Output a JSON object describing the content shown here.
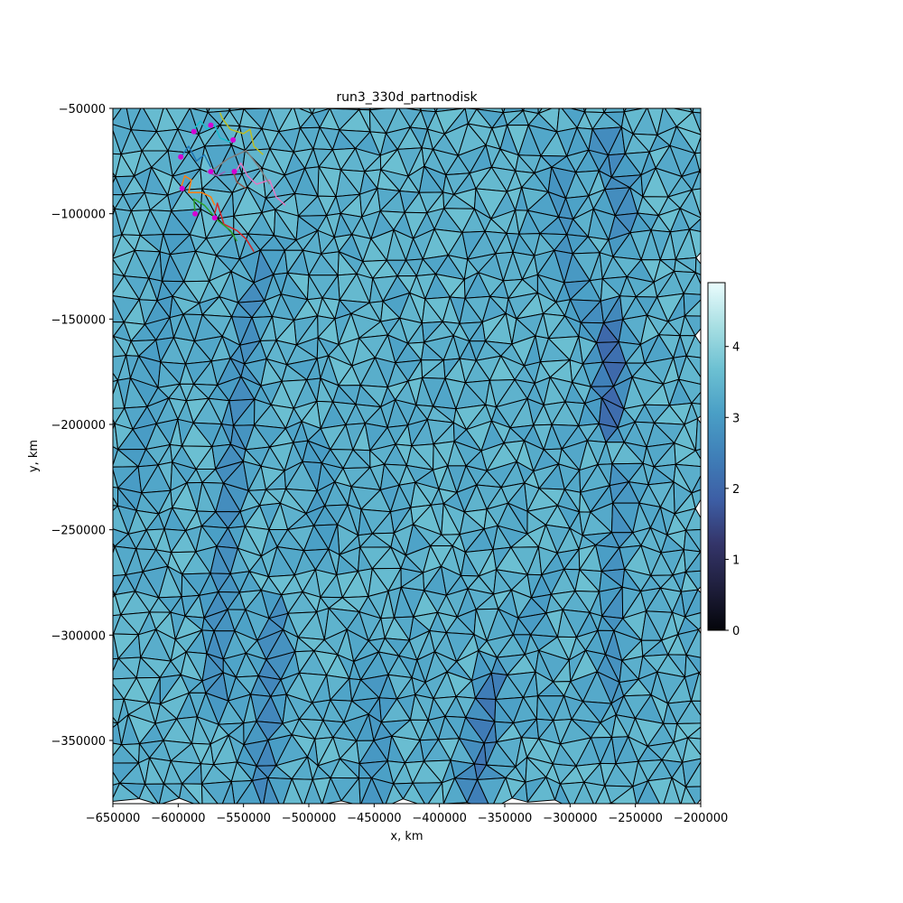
{
  "chart_data": {
    "type": "heatmap",
    "title": "run3_330d_partnodisk",
    "xlabel": "x, km",
    "ylabel": "y, km",
    "xlim": [
      -650000,
      -200000
    ],
    "ylim": [
      -380000,
      -50000
    ],
    "x_ticks": [
      -650000,
      -600000,
      -550000,
      -500000,
      -450000,
      -400000,
      -350000,
      -300000,
      -250000,
      -200000
    ],
    "y_ticks": [
      -50000,
      -100000,
      -150000,
      -200000,
      -250000,
      -300000,
      -350000
    ],
    "x_tick_labels": [
      "−650000",
      "−600000",
      "−550000",
      "−500000",
      "−450000",
      "−400000",
      "−350000",
      "−300000",
      "−250000",
      "−200000"
    ],
    "y_tick_labels": [
      "−50000",
      "−100000",
      "−150000",
      "−200000",
      "−250000",
      "−300000",
      "−350000"
    ],
    "grid": false,
    "mesh": "triangular mesh with black edges",
    "colormap": {
      "name": "ice",
      "range": [
        0,
        4.9
      ],
      "ticks": [
        0,
        1,
        2,
        3,
        4
      ],
      "tick_labels": [
        "0",
        "1",
        "2",
        "3",
        "4"
      ],
      "stops": [
        "#04050a",
        "#1f1f3d",
        "#34356a",
        "#3d5ea5",
        "#3f7fb8",
        "#4a9fc6",
        "#6cc0d2",
        "#a8dfe3",
        "#eafcfd"
      ]
    },
    "background_value": 3.4,
    "low_value_bands": [
      {
        "points": [
          [
            -535000,
            -118000
          ],
          [
            -548000,
            -160000
          ],
          [
            -556000,
            -200000
          ],
          [
            -562000,
            -240000
          ],
          [
            -568000,
            -290000
          ],
          [
            -572000,
            -330000
          ]
        ],
        "value": 2.7
      },
      {
        "points": [
          [
            -525000,
            -290000
          ],
          [
            -530000,
            -330000
          ],
          [
            -536000,
            -380000
          ]
        ],
        "value": 2.6
      },
      {
        "points": [
          [
            -375000,
            -380000
          ],
          [
            -365000,
            -345000
          ],
          [
            -358000,
            -320000
          ]
        ],
        "value": 2.3
      },
      {
        "points": [
          [
            -272000,
            -150000
          ],
          [
            -268000,
            -175000
          ],
          [
            -270000,
            -200000
          ]
        ],
        "value": 2.0
      },
      {
        "points": [
          [
            -275000,
            -65000
          ],
          [
            -262000,
            -85000
          ],
          [
            -258000,
            -110000
          ]
        ],
        "value": 2.6
      },
      {
        "points": [
          [
            -310000,
            -80000
          ],
          [
            -300000,
            -130000
          ],
          [
            -290000,
            -150000
          ]
        ],
        "value": 2.8
      },
      {
        "points": [
          [
            -262000,
            -225000
          ],
          [
            -265000,
            -280000
          ],
          [
            -268000,
            -330000
          ]
        ],
        "value": 2.8
      },
      {
        "points": [
          [
            -445000,
            -320000
          ],
          [
            -450000,
            -380000
          ]
        ],
        "value": 2.9
      },
      {
        "points": [
          [
            -600000,
            -110000
          ],
          [
            -612000,
            -150000
          ],
          [
            -625000,
            -200000
          ],
          [
            -640000,
            -240000
          ]
        ],
        "value": 3.0
      },
      {
        "points": [
          [
            -495000,
            -210000
          ],
          [
            -490000,
            -260000
          ]
        ],
        "value": 3.0
      },
      {
        "points": [
          [
            -320000,
            -280000
          ],
          [
            -335000,
            -300000
          ]
        ],
        "value": 3.0
      }
    ],
    "trajectories": [
      {
        "color": "#d62728",
        "points": [
          [
            -572000,
            -100000
          ],
          [
            -570000,
            -95000
          ],
          [
            -565000,
            -105000
          ],
          [
            -555000,
            -108000
          ],
          [
            -548000,
            -112000
          ],
          [
            -542000,
            -118000
          ]
        ]
      },
      {
        "color": "#2ca02c",
        "points": [
          [
            -587000,
            -100000
          ],
          [
            -588000,
            -93000
          ],
          [
            -580000,
            -96000
          ],
          [
            -570000,
            -103000
          ],
          [
            -560000,
            -108000
          ],
          [
            -555000,
            -113000
          ]
        ]
      },
      {
        "color": "#ff7f0e",
        "points": [
          [
            -598000,
            -88000
          ],
          [
            -595000,
            -82000
          ],
          [
            -590000,
            -84000
          ],
          [
            -592000,
            -90000
          ],
          [
            -582000,
            -90000
          ],
          [
            -575000,
            -92000
          ],
          [
            -572000,
            -96000
          ]
        ]
      },
      {
        "color": "#e377c2",
        "points": [
          [
            -556000,
            -80000
          ],
          [
            -552000,
            -76000
          ],
          [
            -547000,
            -82000
          ],
          [
            -540000,
            -86000
          ],
          [
            -530000,
            -84000
          ],
          [
            -525000,
            -92000
          ],
          [
            -518000,
            -96000
          ]
        ]
      },
      {
        "color": "#7f7f7f",
        "points": [
          [
            -575000,
            -80000
          ],
          [
            -562000,
            -74000
          ],
          [
            -548000,
            -70000
          ],
          [
            -538000,
            -78000
          ],
          [
            -530000,
            -86000
          ]
        ]
      },
      {
        "color": "#1f77b4",
        "points": [
          [
            -598000,
            -73000
          ],
          [
            -592000,
            -68000
          ],
          [
            -586000,
            -75000
          ],
          [
            -580000,
            -72000
          ],
          [
            -575000,
            -78000
          ]
        ]
      },
      {
        "color": "#bcbd22",
        "points": [
          [
            -568000,
            -52000
          ],
          [
            -566000,
            -55000
          ],
          [
            -560000,
            -60000
          ],
          [
            -550000,
            -62000
          ],
          [
            -545000,
            -60000
          ],
          [
            -542000,
            -68000
          ],
          [
            -535000,
            -72000
          ]
        ]
      },
      {
        "color": "#17becf",
        "points": [
          [
            -588000,
            -60000
          ],
          [
            -583000,
            -56000
          ],
          [
            -578000,
            -60000
          ],
          [
            -572000,
            -58000
          ],
          [
            -568000,
            -64000
          ],
          [
            -560000,
            -66000
          ]
        ]
      },
      {
        "color": "#8c564b",
        "points": [
          [
            -558000,
            -80000
          ],
          [
            -555000,
            -85000
          ],
          [
            -548000,
            -88000
          ]
        ]
      },
      {
        "color": "#9467bd",
        "points": [
          [
            -578000,
            -80000
          ],
          [
            -570000,
            -82000
          ],
          [
            -564000,
            -80000
          ]
        ]
      }
    ],
    "markers": {
      "color": "#d400d4",
      "points": [
        [
          -588000,
          -61000
        ],
        [
          -575000,
          -58000
        ],
        [
          -558000,
          -65000
        ],
        [
          -598000,
          -73000
        ],
        [
          -575000,
          -80000
        ],
        [
          -557000,
          -80000
        ],
        [
          -597000,
          -88000
        ],
        [
          -587000,
          -100000
        ],
        [
          -572000,
          -102000
        ]
      ]
    }
  }
}
